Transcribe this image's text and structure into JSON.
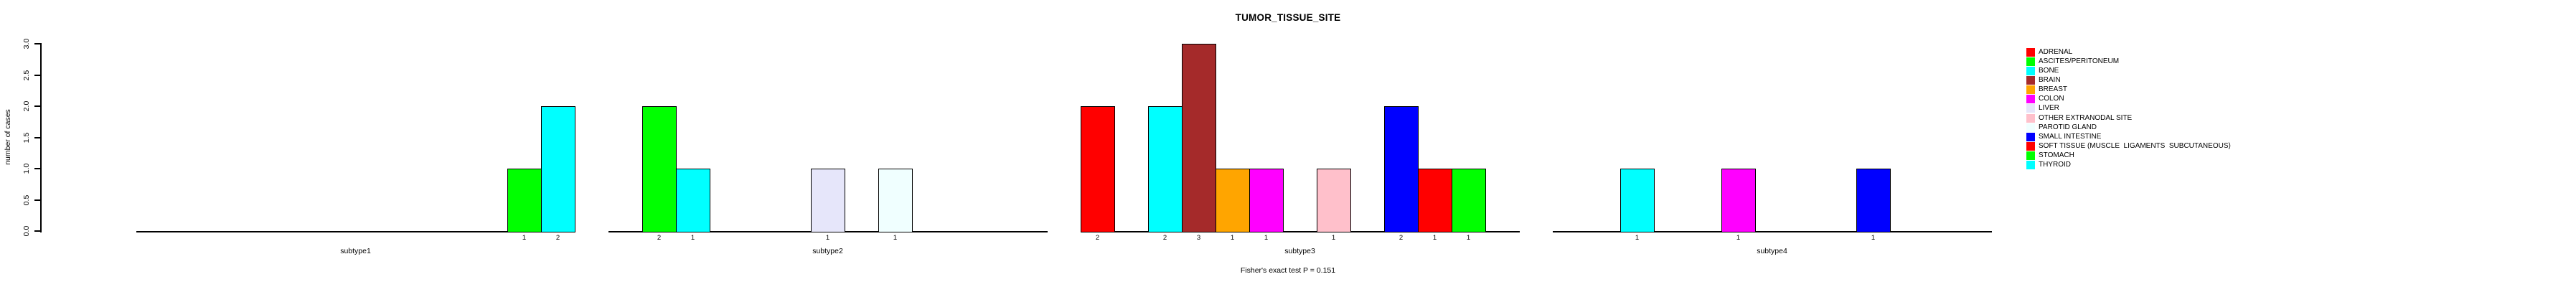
{
  "title": "TUMOR_TISSUE_SITE",
  "footer": "Fisher's exact test P = 0.151",
  "y_axis": {
    "label": "number of cases",
    "tick_labels": [
      "0.0",
      "0.5",
      "1.0",
      "1.5",
      "2.0",
      "2.5",
      "3.0"
    ]
  },
  "chart_data": {
    "type": "bar",
    "title": "TUMOR_TISSUE_SITE",
    "xlabel": "",
    "ylabel": "number of cases",
    "ylim": [
      0,
      3
    ],
    "ytick_labels": [
      "0.0",
      "0.5",
      "1.0",
      "1.5",
      "2.0",
      "2.5",
      "3.0"
    ],
    "annotation": "Fisher's exact test P = 0.151",
    "legend_position": "right",
    "grid": false,
    "categories": [
      "ADRENAL",
      "ASCITES/PERITONEUM",
      "BONE",
      "BRAIN",
      "BREAST",
      "COLON",
      "LIVER",
      "OTHER EXTRANODAL SITE",
      "PAROTID GLAND",
      "SMALL INTESTINE",
      "SOFT TISSUE (MUSCLE  LIGAMENTS  SUBCUTANEOUS)",
      "STOMACH",
      "THYROID"
    ],
    "colors": [
      "#FF0000",
      "#00FF00",
      "#00FFFF",
      "#A52A2A",
      "#FFA500",
      "#FF00FF",
      "#E6E6FA",
      "#FFC0CB",
      "#F0FFFF",
      "#0000FF",
      "#FF0000",
      "#00FF00",
      "#00FFFF"
    ],
    "groups": [
      {
        "label": "subtype1",
        "bars": [
          {
            "category": "STOMACH",
            "value": 1,
            "bar_label": "1"
          },
          {
            "category": "THYROID",
            "value": 2,
            "bar_label": "2"
          }
        ]
      },
      {
        "label": "subtype2",
        "bars": [
          {
            "category": "ASCITES/PERITONEUM",
            "value": 2,
            "bar_label": "2"
          },
          {
            "category": "BONE",
            "value": 1,
            "bar_label": "1"
          },
          {
            "category": "LIVER",
            "value": 1,
            "bar_label": "1"
          },
          {
            "category": "PAROTID GLAND",
            "value": 1,
            "bar_label": "1"
          }
        ]
      },
      {
        "label": "subtype3",
        "bars": [
          {
            "category": "ADRENAL",
            "value": 2,
            "bar_label": "2"
          },
          {
            "category": "BONE",
            "value": 2,
            "bar_label": "2"
          },
          {
            "category": "BRAIN",
            "value": 3,
            "bar_label": "3"
          },
          {
            "category": "BREAST",
            "value": 1,
            "bar_label": "1"
          },
          {
            "category": "COLON",
            "value": 1,
            "bar_label": "1"
          },
          {
            "category": "OTHER EXTRANODAL SITE",
            "value": 1,
            "bar_label": "1"
          },
          {
            "category": "SMALL INTESTINE",
            "value": 2,
            "bar_label": "2"
          },
          {
            "category": "SOFT TISSUE (MUSCLE  LIGAMENTS  SUBCUTANEOUS)",
            "value": 1,
            "bar_label": "1"
          },
          {
            "category": "STOMACH",
            "value": 1,
            "bar_label": "1"
          }
        ]
      },
      {
        "label": "subtype4",
        "bars": [
          {
            "category": "BONE",
            "value": 1,
            "bar_label": "1"
          },
          {
            "category": "COLON",
            "value": 1,
            "bar_label": "1"
          },
          {
            "category": "SMALL INTESTINE",
            "value": 1,
            "bar_label": "1"
          }
        ]
      }
    ]
  }
}
